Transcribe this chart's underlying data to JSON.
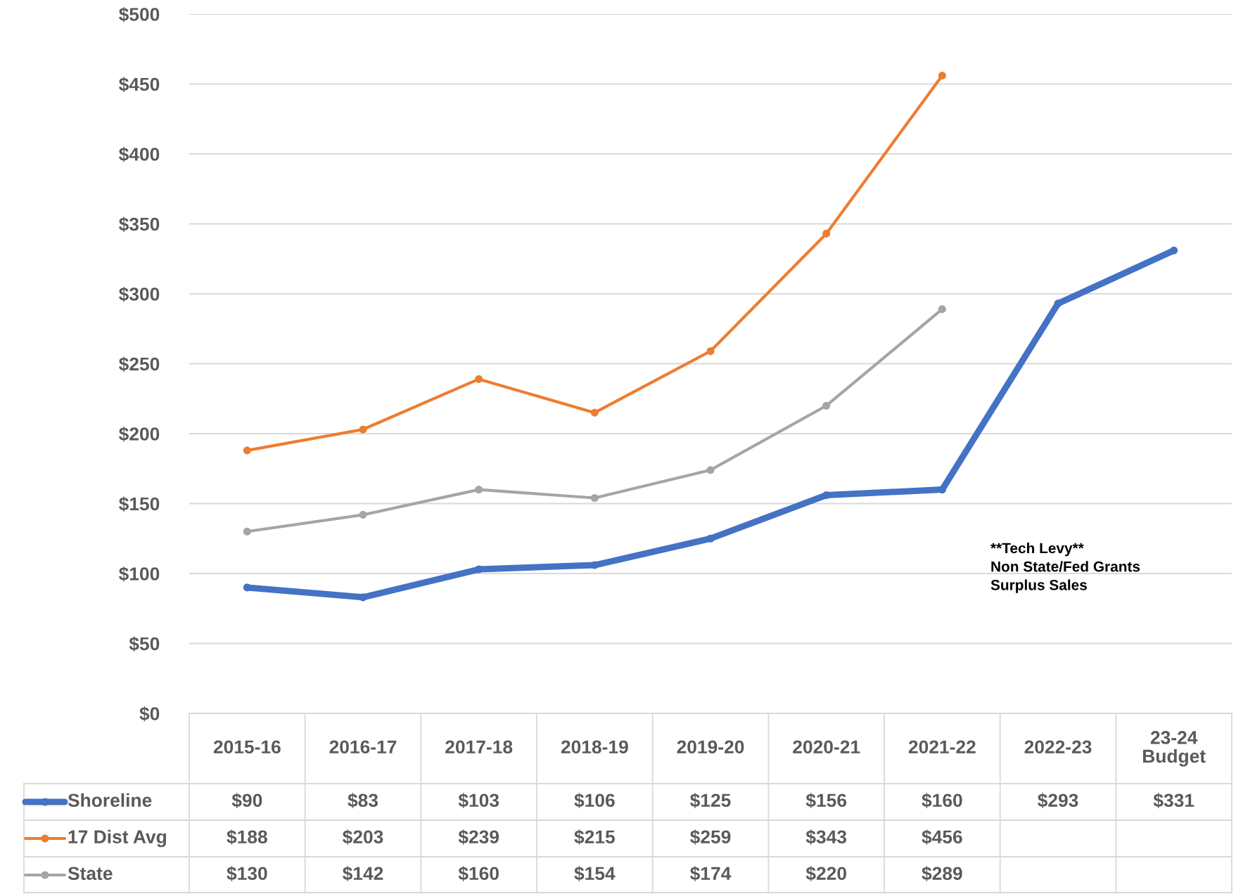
{
  "chart_data": {
    "type": "line",
    "categories": [
      "2015-16",
      "2016-17",
      "2017-18",
      "2018-19",
      "2019-20",
      "2020-21",
      "2021-22",
      "2022-23",
      "23-24\nBudget"
    ],
    "series": [
      {
        "name": "Shoreline",
        "color": "#4472c4",
        "values": [
          90,
          83,
          103,
          106,
          125,
          156,
          160,
          293,
          331
        ],
        "value_labels": [
          "$90",
          "$83",
          "$103",
          "$106",
          "$125",
          "$156",
          "$160",
          "$293",
          "$331"
        ]
      },
      {
        "name": "17 Dist Avg",
        "color": "#ed7d31",
        "values": [
          188,
          203,
          239,
          215,
          259,
          343,
          456,
          null,
          null
        ],
        "value_labels": [
          "$188",
          "$203",
          "$239",
          "$215",
          "$259",
          "$343",
          "$456",
          null,
          null
        ]
      },
      {
        "name": "State",
        "color": "#a5a5a5",
        "values": [
          130,
          142,
          160,
          154,
          174,
          220,
          289,
          null,
          null
        ],
        "value_labels": [
          "$130",
          "$142",
          "$160",
          "$154",
          "$174",
          "$220",
          "$289",
          null,
          null
        ]
      }
    ],
    "ylim": [
      0,
      500
    ],
    "yticks": [
      {
        "value": 0,
        "label": "$0"
      },
      {
        "value": 50,
        "label": "$50"
      },
      {
        "value": 100,
        "label": "$100"
      },
      {
        "value": 150,
        "label": "$150"
      },
      {
        "value": 200,
        "label": "$200"
      },
      {
        "value": 250,
        "label": "$250"
      },
      {
        "value": 300,
        "label": "$300"
      },
      {
        "value": 350,
        "label": "$350"
      },
      {
        "value": 400,
        "label": "$400"
      },
      {
        "value": 450,
        "label": "$450"
      },
      {
        "value": 500,
        "label": "$500"
      }
    ],
    "grid": "y",
    "legend": "bottom left",
    "marker": "circle",
    "line_style": "solid",
    "annotations": [
      "**Tech Levy**\nNon State/Fed Grants\nSurplus Sales"
    ]
  }
}
